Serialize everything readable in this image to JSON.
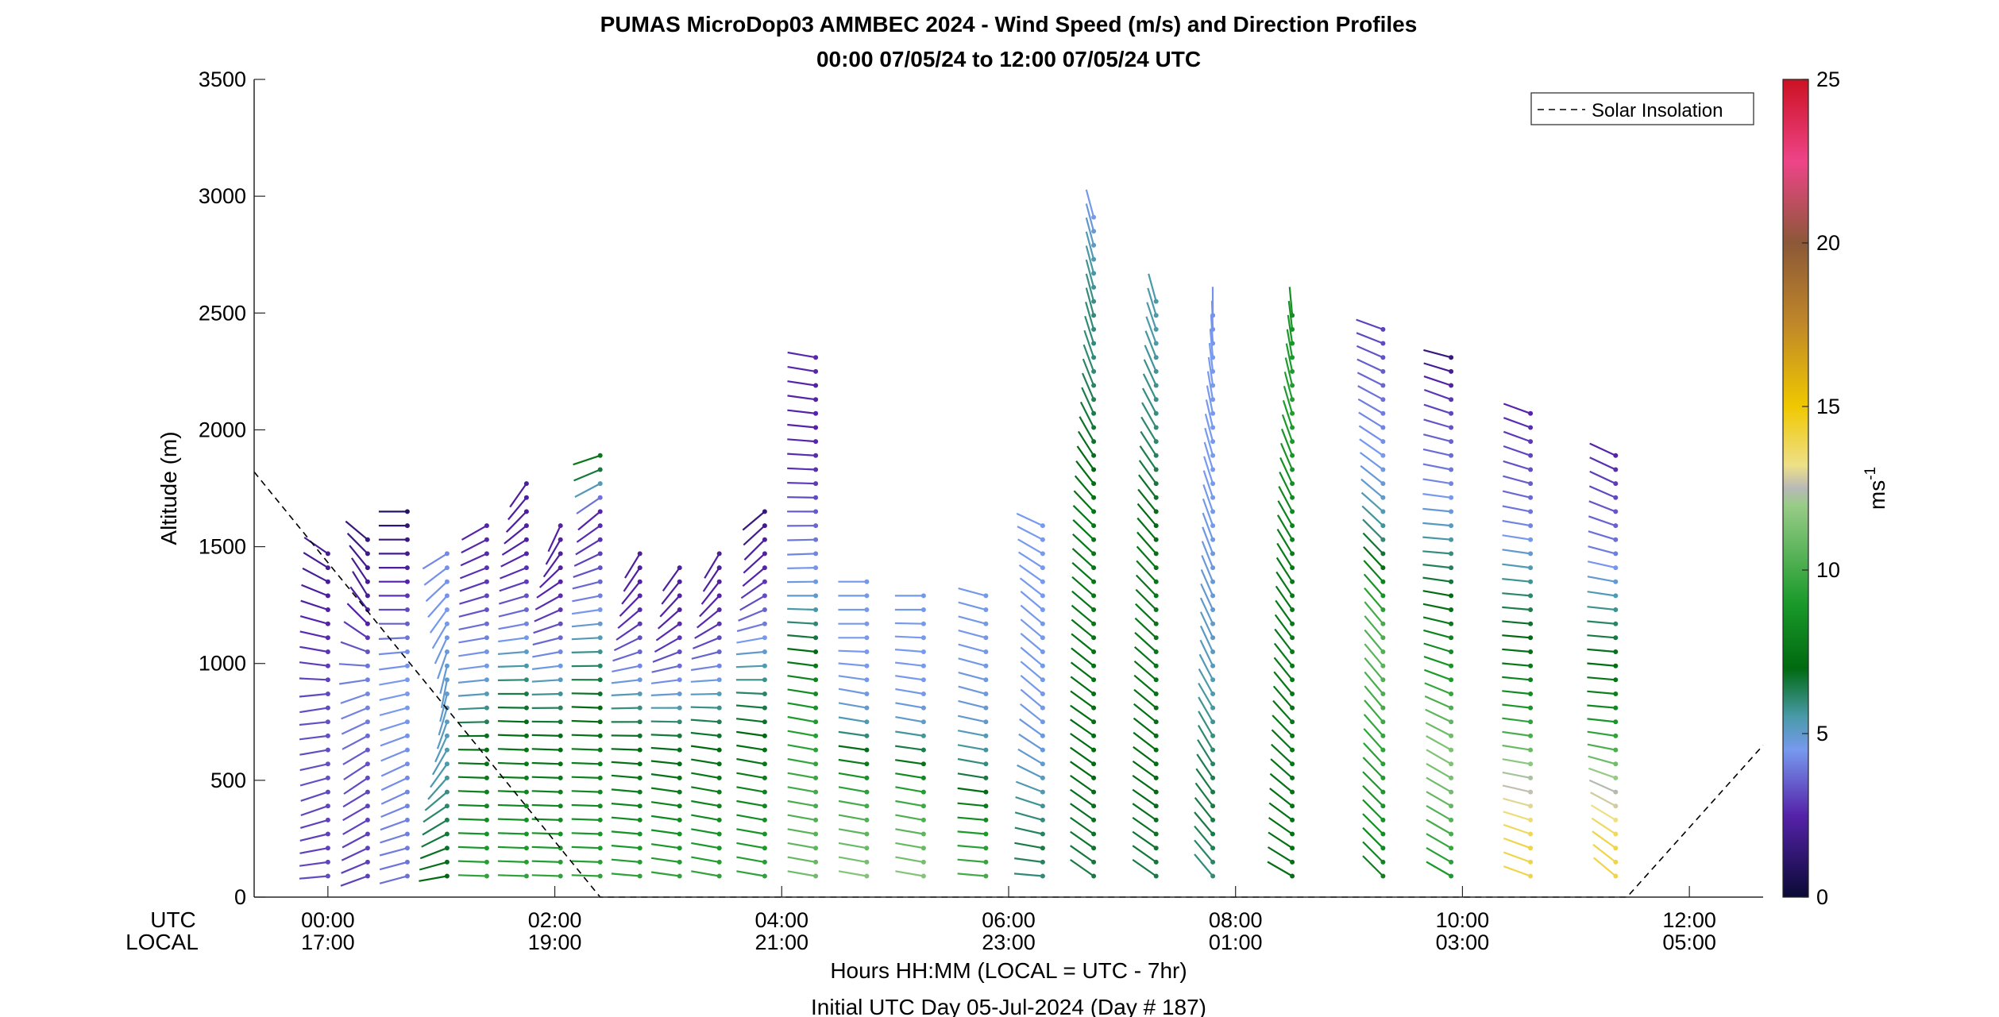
{
  "chart_data": {
    "type": "wind-barb-profile",
    "title": "PUMAS MicroDop03 AMMBEC 2024 - Wind Speed (m/s) and Direction Profiles",
    "subtitle": "00:00 07/05/24 to 12:00 07/05/24  UTC",
    "ylabel": "Altitude (m)",
    "ylim": [
      0,
      3500
    ],
    "yticks": [
      "0",
      "500",
      "1000",
      "1500",
      "2000",
      "2500",
      "3000",
      "3500"
    ],
    "xlim_hours": [
      -0.65,
      12.65
    ],
    "xticks_utc": [
      "00:00",
      "02:00",
      "04:00",
      "06:00",
      "08:00",
      "10:00",
      "12:00"
    ],
    "xticks_local": [
      "17:00",
      "19:00",
      "21:00",
      "23:00",
      "01:00",
      "03:00",
      "05:00"
    ],
    "xticks_hours": [
      0,
      2,
      4,
      6,
      8,
      10,
      12
    ],
    "utc_row_label": "UTC",
    "local_row_label": "LOCAL",
    "xlabel": "Hours HH:MM  (LOCAL = UTC - 7hr)",
    "xlabel2": "Initial UTC Day 05-Jul-2024 (Day # 187)",
    "legend": {
      "entry": "Solar Insolation",
      "placement": "top-right",
      "style": "dashed"
    },
    "colorbar": {
      "label": "ms",
      "label_exponent": "-1",
      "range": [
        0,
        25
      ],
      "ticks": [
        "0",
        "5",
        "10",
        "15",
        "20",
        "25"
      ],
      "tick_values": [
        0,
        5,
        10,
        15,
        20,
        25
      ],
      "stops": [
        {
          "v": 0,
          "c": "#0a0a35"
        },
        {
          "v": 2.5,
          "c": "#5522aa"
        },
        {
          "v": 4.5,
          "c": "#7799ee"
        },
        {
          "v": 5.5,
          "c": "#4a9aaa"
        },
        {
          "v": 7,
          "c": "#006a10"
        },
        {
          "v": 9,
          "c": "#1a9a2a"
        },
        {
          "v": 12,
          "c": "#99cc88"
        },
        {
          "v": 12.5,
          "c": "#b8b8b8"
        },
        {
          "v": 13.2,
          "c": "#eee088"
        },
        {
          "v": 15,
          "c": "#f0c800"
        },
        {
          "v": 17.5,
          "c": "#c08828"
        },
        {
          "v": 20,
          "c": "#8c5838"
        },
        {
          "v": 22.5,
          "c": "#ee4488"
        },
        {
          "v": 25,
          "c": "#cc1122"
        }
      ]
    },
    "solar_insolation_line": {
      "points_hours_alt": [
        [
          -0.65,
          1820
        ],
        [
          2.4,
          0
        ],
        [
          11.45,
          0
        ],
        [
          12.65,
          650
        ]
      ]
    },
    "profiles": [
      {
        "t": 0.0,
        "top": 1480,
        "dir": [
          265,
          260,
          255,
          250,
          255,
          260,
          265,
          260,
          275,
          280,
          285,
          290,
          300,
          305
        ],
        "spd": [
          3.2,
          3.0,
          3.0,
          3.1,
          3.3,
          3.2,
          3.3,
          3.2,
          3.0,
          2.8,
          2.5,
          2.2,
          2.0,
          2.0
        ]
      },
      {
        "t": 0.35,
        "top": 1530,
        "dir": [
          250,
          245,
          240,
          240,
          235,
          240,
          245,
          250,
          270,
          300,
          320,
          330,
          320,
          310
        ],
        "spd": [
          3.0,
          3.0,
          3.0,
          3.1,
          3.2,
          3.5,
          4.0,
          4.2,
          4.0,
          3.0,
          2.2,
          2.0,
          1.8,
          1.5
        ]
      },
      {
        "t": 0.7,
        "top": 1650,
        "dir": [
          255,
          255,
          250,
          245,
          245,
          250,
          255,
          260,
          265,
          270,
          270,
          270,
          270,
          270
        ],
        "spd": [
          3.8,
          4.0,
          4.1,
          4.2,
          4.3,
          4.4,
          4.5,
          4.5,
          4.3,
          3.5,
          2.8,
          2.2,
          1.5,
          1.0
        ]
      },
      {
        "t": 1.05,
        "top": 1490,
        "dir": [
          260,
          250,
          240,
          235,
          220,
          210,
          200,
          195,
          190,
          200,
          210,
          220,
          230,
          240
        ],
        "spd": [
          7.0,
          6.8,
          6.5,
          6.0,
          5.6,
          5.4,
          5.2,
          5.0,
          5.0,
          4.8,
          4.6,
          4.4,
          4.4,
          4.2
        ]
      },
      {
        "t": 1.4,
        "top": 1600,
        "dir": [
          272,
          272,
          272,
          272,
          272,
          270,
          268,
          265,
          262,
          260,
          255,
          250,
          245,
          240
        ],
        "spd": [
          9.5,
          9.0,
          8.5,
          8.0,
          7.5,
          7.0,
          6.0,
          5.0,
          4.5,
          4.0,
          3.2,
          2.8,
          2.6,
          2.5
        ]
      },
      {
        "t": 1.75,
        "top": 1770,
        "dir": [
          272,
          272,
          272,
          272,
          272,
          272,
          270,
          268,
          262,
          255,
          250,
          240,
          225,
          215
        ],
        "spd": [
          9.5,
          9.0,
          8.5,
          8.0,
          7.5,
          7.0,
          6.5,
          5.5,
          4.5,
          3.5,
          2.8,
          2.4,
          2.2,
          2.2
        ]
      },
      {
        "t": 2.05,
        "top": 1590,
        "dir": [
          272,
          272,
          272,
          272,
          272,
          272,
          270,
          268,
          262,
          255,
          245,
          235,
          215,
          205
        ],
        "spd": [
          9.5,
          9.0,
          8.5,
          8.0,
          7.5,
          7.0,
          6.5,
          5.5,
          4.5,
          3.5,
          2.8,
          2.5,
          2.3,
          2.4
        ]
      },
      {
        "t": 2.4,
        "top": 1940,
        "dir": [
          272,
          272,
          272,
          272,
          272,
          272,
          270,
          268,
          262,
          255,
          240,
          230,
          245,
          255
        ],
        "spd": [
          9.5,
          9.0,
          8.5,
          8.0,
          7.5,
          7.0,
          6.5,
          5.5,
          4.5,
          3.5,
          2.8,
          2.5,
          6.0,
          8.5
        ]
      },
      {
        "t": 2.75,
        "top": 1500,
        "dir": [
          275,
          275,
          275,
          275,
          275,
          272,
          270,
          268,
          262,
          250,
          235,
          225,
          215,
          210
        ],
        "spd": [
          9.5,
          9.0,
          8.5,
          8.0,
          7.5,
          7.0,
          6.5,
          5.5,
          4.5,
          3.5,
          2.8,
          2.5,
          2.3,
          2.2
        ]
      },
      {
        "t": 3.1,
        "top": 1420,
        "dir": [
          278,
          278,
          278,
          278,
          278,
          275,
          272,
          270,
          265,
          255,
          240,
          230,
          220,
          215
        ],
        "spd": [
          9.5,
          9.0,
          8.5,
          8.0,
          7.5,
          7.0,
          6.5,
          5.5,
          4.5,
          3.5,
          2.8,
          2.5,
          2.3,
          2.2
        ]
      },
      {
        "t": 3.45,
        "top": 1490,
        "dir": [
          280,
          280,
          280,
          280,
          280,
          278,
          275,
          270,
          265,
          255,
          240,
          225,
          215,
          210
        ],
        "spd": [
          9.5,
          9.0,
          8.5,
          8.0,
          7.5,
          7.0,
          6.5,
          5.5,
          4.5,
          3.5,
          2.8,
          2.5,
          2.3,
          2.2
        ]
      },
      {
        "t": 3.85,
        "top": 1650,
        "dir": [
          280,
          280,
          280,
          280,
          280,
          278,
          275,
          270,
          265,
          255,
          240,
          230,
          225,
          230
        ],
        "spd": [
          9.5,
          9.0,
          8.5,
          8.0,
          7.5,
          7.0,
          6.5,
          5.8,
          5.0,
          4.0,
          3.2,
          2.5,
          2.2,
          1.5
        ]
      },
      {
        "t": 4.3,
        "top": 2320,
        "dir": [
          280,
          280,
          280,
          280,
          280,
          278,
          275,
          270,
          268,
          270,
          272,
          275,
          278,
          280
        ],
        "spd": [
          11.0,
          10.5,
          10.0,
          9.5,
          9.0,
          8.0,
          6.5,
          5.0,
          4.2,
          3.5,
          2.8,
          2.5,
          2.5,
          2.6
        ]
      },
      {
        "t": 4.75,
        "top": 1390,
        "dir": [
          280,
          280,
          280,
          280,
          280,
          278,
          278,
          280,
          280,
          275,
          270,
          270,
          270,
          270
        ],
        "spd": [
          11.5,
          11.0,
          10.5,
          10.0,
          9.0,
          7.5,
          6.0,
          5.0,
          4.6,
          4.5,
          4.5,
          4.5,
          4.6,
          4.6
        ]
      },
      {
        "t": 5.25,
        "top": 1320,
        "dir": [
          280,
          280,
          280,
          280,
          280,
          278,
          278,
          280,
          280,
          278,
          275,
          272,
          270,
          270
        ],
        "spd": [
          11.5,
          11.0,
          10.5,
          10.0,
          9.0,
          7.5,
          6.0,
          5.0,
          4.6,
          4.5,
          4.5,
          4.5,
          4.6,
          4.6
        ]
      },
      {
        "t": 5.8,
        "top": 1310,
        "dir": [
          275,
          275,
          275,
          275,
          278,
          280,
          280,
          282,
          285,
          285,
          285,
          285,
          285,
          285
        ],
        "spd": [
          10.0,
          9.5,
          9.0,
          8.0,
          7.0,
          6.0,
          5.5,
          5.0,
          4.8,
          4.7,
          4.6,
          4.6,
          4.6,
          4.6
        ]
      },
      {
        "t": 6.3,
        "top": 1590,
        "dir": [
          275,
          280,
          285,
          290,
          300,
          305,
          310,
          310,
          310,
          310,
          310,
          305,
          300,
          295
        ],
        "spd": [
          6.0,
          6.5,
          6.0,
          5.5,
          5.0,
          4.8,
          4.6,
          4.6,
          4.6,
          4.6,
          4.5,
          4.5,
          4.5,
          4.5
        ]
      },
      {
        "t": 6.75,
        "top": 2920,
        "dir": [
          305,
          305,
          305,
          305,
          308,
          310,
          312,
          315,
          325,
          335,
          340,
          345,
          345,
          345
        ],
        "spd": [
          6.5,
          6.8,
          7.0,
          7.2,
          7.3,
          7.5,
          7.5,
          7.5,
          7.0,
          6.5,
          6.0,
          6.0,
          5.5,
          4.5
        ]
      },
      {
        "t": 7.3,
        "top": 2560,
        "dir": [
          305,
          305,
          305,
          308,
          310,
          312,
          315,
          318,
          320,
          325,
          330,
          335,
          340,
          345
        ],
        "spd": [
          6.5,
          6.8,
          7.0,
          7.2,
          7.3,
          7.5,
          7.5,
          7.5,
          7.0,
          6.5,
          6.0,
          5.8,
          5.5,
          5.5
        ]
      },
      {
        "t": 7.8,
        "top": 2500,
        "dir": [
          320,
          320,
          325,
          330,
          330,
          335,
          335,
          338,
          340,
          342,
          345,
          350,
          355,
          0
        ],
        "spd": [
          6.0,
          6.5,
          6.5,
          6.0,
          5.5,
          5.2,
          5.0,
          4.8,
          4.6,
          4.5,
          4.5,
          4.5,
          4.5,
          4.4
        ]
      },
      {
        "t": 8.5,
        "top": 2500,
        "dir": [
          300,
          305,
          310,
          315,
          320,
          322,
          325,
          328,
          330,
          335,
          340,
          345,
          350,
          355
        ],
        "spd": [
          7.2,
          7.3,
          7.4,
          7.5,
          7.5,
          7.6,
          7.6,
          7.6,
          8.0,
          8.5,
          9.0,
          9.2,
          9.0,
          8.5
        ]
      },
      {
        "t": 9.3,
        "top": 2430,
        "dir": [
          315,
          315,
          315,
          318,
          320,
          320,
          320,
          318,
          315,
          310,
          305,
          300,
          295,
          290
        ],
        "spd": [
          8.0,
          8.5,
          9.0,
          9.5,
          10.0,
          10.5,
          10.0,
          8.0,
          6.0,
          5.0,
          4.5,
          4.0,
          3.5,
          3.0
        ]
      },
      {
        "t": 9.9,
        "top": 2310,
        "dir": [
          300,
          300,
          300,
          300,
          295,
          290,
          285,
          280,
          275,
          275,
          280,
          285,
          290,
          285
        ],
        "spd": [
          9.0,
          10.0,
          11.0,
          11.5,
          10.5,
          9.0,
          8.0,
          7.0,
          6.0,
          5.0,
          4.0,
          3.5,
          2.8,
          1.5
        ]
      },
      {
        "t": 10.6,
        "top": 2070,
        "dir": [
          290,
          290,
          285,
          280,
          278,
          276,
          275,
          275,
          275,
          278,
          280,
          285,
          290,
          290
        ],
        "spd": [
          14.0,
          14.0,
          13.0,
          12.0,
          10.0,
          8.5,
          7.5,
          6.8,
          6.0,
          5.0,
          4.0,
          3.5,
          3.0,
          2.5
        ]
      },
      {
        "t": 11.35,
        "top": 1890,
        "dir": [
          310,
          305,
          300,
          290,
          280,
          275,
          275,
          275,
          275,
          280,
          285,
          290,
          295,
          295
        ],
        "spd": [
          14.0,
          14.0,
          13.0,
          12.0,
          10.0,
          8.5,
          7.5,
          6.8,
          6.0,
          5.0,
          4.0,
          3.5,
          3.0,
          2.5
        ]
      }
    ]
  }
}
